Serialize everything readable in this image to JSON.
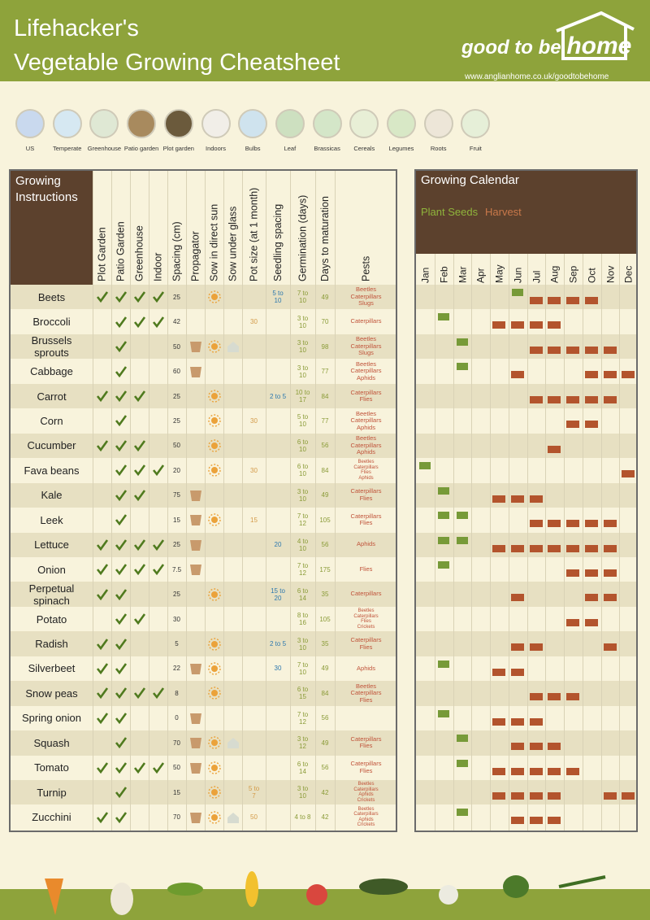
{
  "header": {
    "title": [
      "Lifehacker's",
      "Vegetable Growing Cheatsheet"
    ],
    "brand": [
      "good to be",
      "home"
    ],
    "url": "www.anglianhome.co.uk/goodtobehome"
  },
  "icons": [
    "US",
    "Temperate",
    "Greenhouse",
    "Patio garden",
    "Plot garden",
    "Indoors",
    "Bulbs",
    "Leaf",
    "Brassicas",
    "Cereals",
    "Legumes",
    "Roots",
    "Fruit"
  ],
  "table": {
    "title": "Growing Instructions",
    "columns": [
      "Plot Garden",
      "Patio Garden",
      "Greenhouse",
      "Indoor",
      "Spacing (cm)",
      "Propagator",
      "Sow in direct sun",
      "Sow under glass",
      "Pot size (at 1 month)",
      "Seedling spacing",
      "Germination (days)",
      "Days to maturation",
      "Pests"
    ],
    "rows": [
      {
        "name": "Beets",
        "plot": true,
        "patio": true,
        "greenhouse": true,
        "indoor": true,
        "spacing": 25,
        "propagator": false,
        "sun": true,
        "glass": false,
        "seedling": "5 to 10",
        "germination": "7 to 10",
        "days": 49,
        "pests": [
          "Beetles",
          "Caterpillars",
          "Slugs"
        ]
      },
      {
        "name": "Broccoli",
        "plot": false,
        "patio": true,
        "greenhouse": true,
        "indoor": true,
        "spacing": 42,
        "propagator": false,
        "sun": false,
        "glass": false,
        "pot": 30,
        "germination": "3 to 10",
        "days": 70,
        "pests": [
          "Caterpillars"
        ]
      },
      {
        "name": "Brussels sprouts",
        "plot": false,
        "patio": true,
        "greenhouse": false,
        "indoor": false,
        "spacing": 50,
        "propagator": true,
        "sun": true,
        "glass": true,
        "germination": "3 to 10",
        "days": 98,
        "pests": [
          "Beetles",
          "Caterpillars",
          "Slugs"
        ]
      },
      {
        "name": "Cabbage",
        "plot": false,
        "patio": true,
        "greenhouse": false,
        "indoor": false,
        "spacing": 60,
        "propagator": true,
        "sun": false,
        "glass": false,
        "germination": "3 to 10",
        "days": 77,
        "pests": [
          "Beetles",
          "Caterpillars",
          "Aphids"
        ]
      },
      {
        "name": "Carrot",
        "plot": true,
        "patio": true,
        "greenhouse": true,
        "indoor": false,
        "spacing": 25,
        "propagator": false,
        "sun": true,
        "glass": false,
        "seedling": "2 to 5",
        "germination": "10 to 17",
        "days": 84,
        "pests": [
          "Caterpillars",
          "Flies"
        ]
      },
      {
        "name": "Corn",
        "plot": false,
        "patio": true,
        "greenhouse": false,
        "indoor": false,
        "spacing": 25,
        "propagator": false,
        "sun": true,
        "glass": false,
        "pot": 30,
        "germination": "5 to 10",
        "days": 77,
        "pests": [
          "Beetles",
          "Caterpillars",
          "Aphids"
        ]
      },
      {
        "name": "Cucumber",
        "plot": true,
        "patio": true,
        "greenhouse": true,
        "indoor": false,
        "spacing": 50,
        "propagator": false,
        "sun": true,
        "glass": false,
        "germination": "6 to 10",
        "days": 56,
        "pests": [
          "Beetles",
          "Caterpillars",
          "Aphids"
        ]
      },
      {
        "name": "Fava beans",
        "plot": false,
        "patio": true,
        "greenhouse": true,
        "indoor": true,
        "spacing": 20,
        "propagator": false,
        "sun": true,
        "glass": false,
        "pot": 30,
        "germination": "6 to 10",
        "days": 84,
        "pests": [
          "Beetles",
          "Caterpillars",
          "Flies",
          "Aphids"
        ]
      },
      {
        "name": "Kale",
        "plot": false,
        "patio": true,
        "greenhouse": true,
        "indoor": false,
        "spacing": 75,
        "propagator": true,
        "sun": false,
        "glass": false,
        "germination": "3 to 10",
        "days": 49,
        "pests": [
          "Caterpillars",
          "Flies"
        ]
      },
      {
        "name": "Leek",
        "plot": false,
        "patio": true,
        "greenhouse": false,
        "indoor": false,
        "spacing": 15,
        "propagator": true,
        "sun": true,
        "glass": false,
        "pot": 15,
        "germination": "7 to 12",
        "days": 105,
        "pests": [
          "Caterpillars",
          "Flies"
        ]
      },
      {
        "name": "Lettuce",
        "plot": true,
        "patio": true,
        "greenhouse": true,
        "indoor": true,
        "spacing": 25,
        "propagator": true,
        "sun": false,
        "glass": false,
        "seedling": 20,
        "germination": "4 to 10",
        "days": 56,
        "pests": [
          "Aphids"
        ]
      },
      {
        "name": "Onion",
        "plot": true,
        "patio": true,
        "greenhouse": true,
        "indoor": true,
        "spacing": 7.5,
        "propagator": true,
        "sun": false,
        "glass": false,
        "germination": "7 to 12",
        "days": 175,
        "pests": [
          "Flies"
        ]
      },
      {
        "name": "Perpetual spinach",
        "plot": true,
        "patio": true,
        "greenhouse": false,
        "indoor": false,
        "spacing": 25,
        "propagator": false,
        "sun": true,
        "glass": false,
        "seedling": "15 to 20",
        "germination": "6 to 14",
        "days": 35,
        "pests": [
          "Caterpillars"
        ]
      },
      {
        "name": "Potato",
        "plot": false,
        "patio": true,
        "greenhouse": true,
        "indoor": false,
        "spacing": 30,
        "propagator": false,
        "sun": false,
        "glass": false,
        "germination": "8 to 16",
        "days": 105,
        "pests": [
          "Beetles",
          "Caterpillars",
          "Flies",
          "Crickets"
        ]
      },
      {
        "name": "Radish",
        "plot": true,
        "patio": true,
        "greenhouse": false,
        "indoor": false,
        "spacing": 5,
        "propagator": false,
        "sun": true,
        "glass": false,
        "seedling": "2 to 5",
        "germination": "3 to 10",
        "days": 35,
        "pests": [
          "Caterpillars",
          "Flies"
        ]
      },
      {
        "name": "Silverbeet",
        "plot": true,
        "patio": true,
        "greenhouse": false,
        "indoor": false,
        "spacing": 22,
        "propagator": true,
        "sun": true,
        "glass": false,
        "seedling": 30,
        "germination": "7 to 10",
        "days": 49,
        "pests": [
          "Aphids"
        ]
      },
      {
        "name": "Snow peas",
        "plot": true,
        "patio": true,
        "greenhouse": true,
        "indoor": true,
        "spacing": 8,
        "propagator": false,
        "sun": true,
        "glass": false,
        "germination": "6 to 15",
        "days": 84,
        "pests": [
          "Beetles",
          "Caterpillars",
          "Flies"
        ]
      },
      {
        "name": "Spring onion",
        "plot": true,
        "patio": true,
        "greenhouse": false,
        "indoor": false,
        "spacing": 0,
        "propagator": true,
        "sun": false,
        "glass": false,
        "germination": "7 to 12",
        "days": 56,
        "pests": []
      },
      {
        "name": "Squash",
        "plot": false,
        "patio": true,
        "greenhouse": false,
        "indoor": false,
        "spacing": 70,
        "propagator": true,
        "sun": true,
        "glass": true,
        "germination": "3 to 12",
        "days": 49,
        "pests": [
          "Caterpillars",
          "Flies"
        ]
      },
      {
        "name": "Tomato",
        "plot": true,
        "patio": true,
        "greenhouse": true,
        "indoor": true,
        "spacing": 50,
        "propagator": true,
        "sun": true,
        "glass": false,
        "germination": "6 to 14",
        "days": 56,
        "pests": [
          "Caterpillars",
          "Flies"
        ]
      },
      {
        "name": "Turnip",
        "plot": false,
        "patio": true,
        "greenhouse": false,
        "indoor": false,
        "spacing": 15,
        "propagator": false,
        "sun": true,
        "glass": false,
        "pot": "5 to 7",
        "germination": "3 to 10",
        "days": 42,
        "pests": [
          "Beetles",
          "Caterpillars",
          "Aphids",
          "Crickets"
        ]
      },
      {
        "name": "Zucchini",
        "plot": true,
        "patio": true,
        "greenhouse": false,
        "indoor": false,
        "spacing": 70,
        "propagator": true,
        "sun": true,
        "glass": true,
        "pot": 50,
        "germination": "4 to 8",
        "days": 42,
        "pests": [
          "Beetles",
          "Caterpillars",
          "Aphids",
          "Crickets"
        ]
      }
    ]
  },
  "calendar": {
    "title": "Growing Calendar",
    "legend": [
      "Plant Seeds",
      "Harvest"
    ],
    "months": [
      "Jan",
      "Feb",
      "Mar",
      "Apr",
      "May",
      "Jun",
      "Jul",
      "Aug",
      "Sep",
      "Oct",
      "Nov",
      "Dec"
    ],
    "rows": [
      {
        "plant": [
          5
        ],
        "harvest": [
          6,
          7,
          8,
          9
        ]
      },
      {
        "plant": [
          1
        ],
        "harvest": [
          4,
          5,
          6,
          7
        ]
      },
      {
        "plant": [
          2
        ],
        "harvest": [
          6,
          7,
          8,
          9,
          10
        ]
      },
      {
        "plant": [
          2
        ],
        "harvest": [
          5,
          9,
          10,
          11
        ]
      },
      {
        "plant": [],
        "harvest": [
          6,
          7,
          8,
          9,
          10
        ]
      },
      {
        "plant": [],
        "harvest": [
          8,
          9
        ]
      },
      {
        "plant": [],
        "harvest": [
          7
        ]
      },
      {
        "plant": [
          0
        ],
        "harvest": [
          11
        ]
      },
      {
        "plant": [
          1
        ],
        "harvest": [
          4,
          5,
          6
        ]
      },
      {
        "plant": [
          1,
          2
        ],
        "harvest": [
          6,
          7,
          8,
          9,
          10
        ]
      },
      {
        "plant": [
          1,
          2
        ],
        "harvest": [
          4,
          5,
          6,
          7,
          8,
          9,
          10
        ]
      },
      {
        "plant": [
          1
        ],
        "harvest": [
          8,
          9,
          10
        ]
      },
      {
        "plant": [],
        "harvest": [
          5,
          9,
          10
        ]
      },
      {
        "plant": [],
        "harvest": [
          8,
          9
        ]
      },
      {
        "plant": [],
        "harvest": [
          5,
          6,
          10
        ]
      },
      {
        "plant": [
          1
        ],
        "harvest": [
          4,
          5
        ]
      },
      {
        "plant": [],
        "harvest": [
          6,
          7,
          8
        ]
      },
      {
        "plant": [
          1
        ],
        "harvest": [
          4,
          5,
          6
        ]
      },
      {
        "plant": [
          2
        ],
        "harvest": [
          5,
          6,
          7
        ]
      },
      {
        "plant": [
          2
        ],
        "harvest": [
          4,
          5,
          6,
          7,
          8
        ]
      },
      {
        "plant": [],
        "harvest": [
          4,
          5,
          6,
          7,
          10,
          11
        ]
      },
      {
        "plant": [
          2
        ],
        "harvest": [
          5,
          6,
          7
        ]
      }
    ]
  }
}
